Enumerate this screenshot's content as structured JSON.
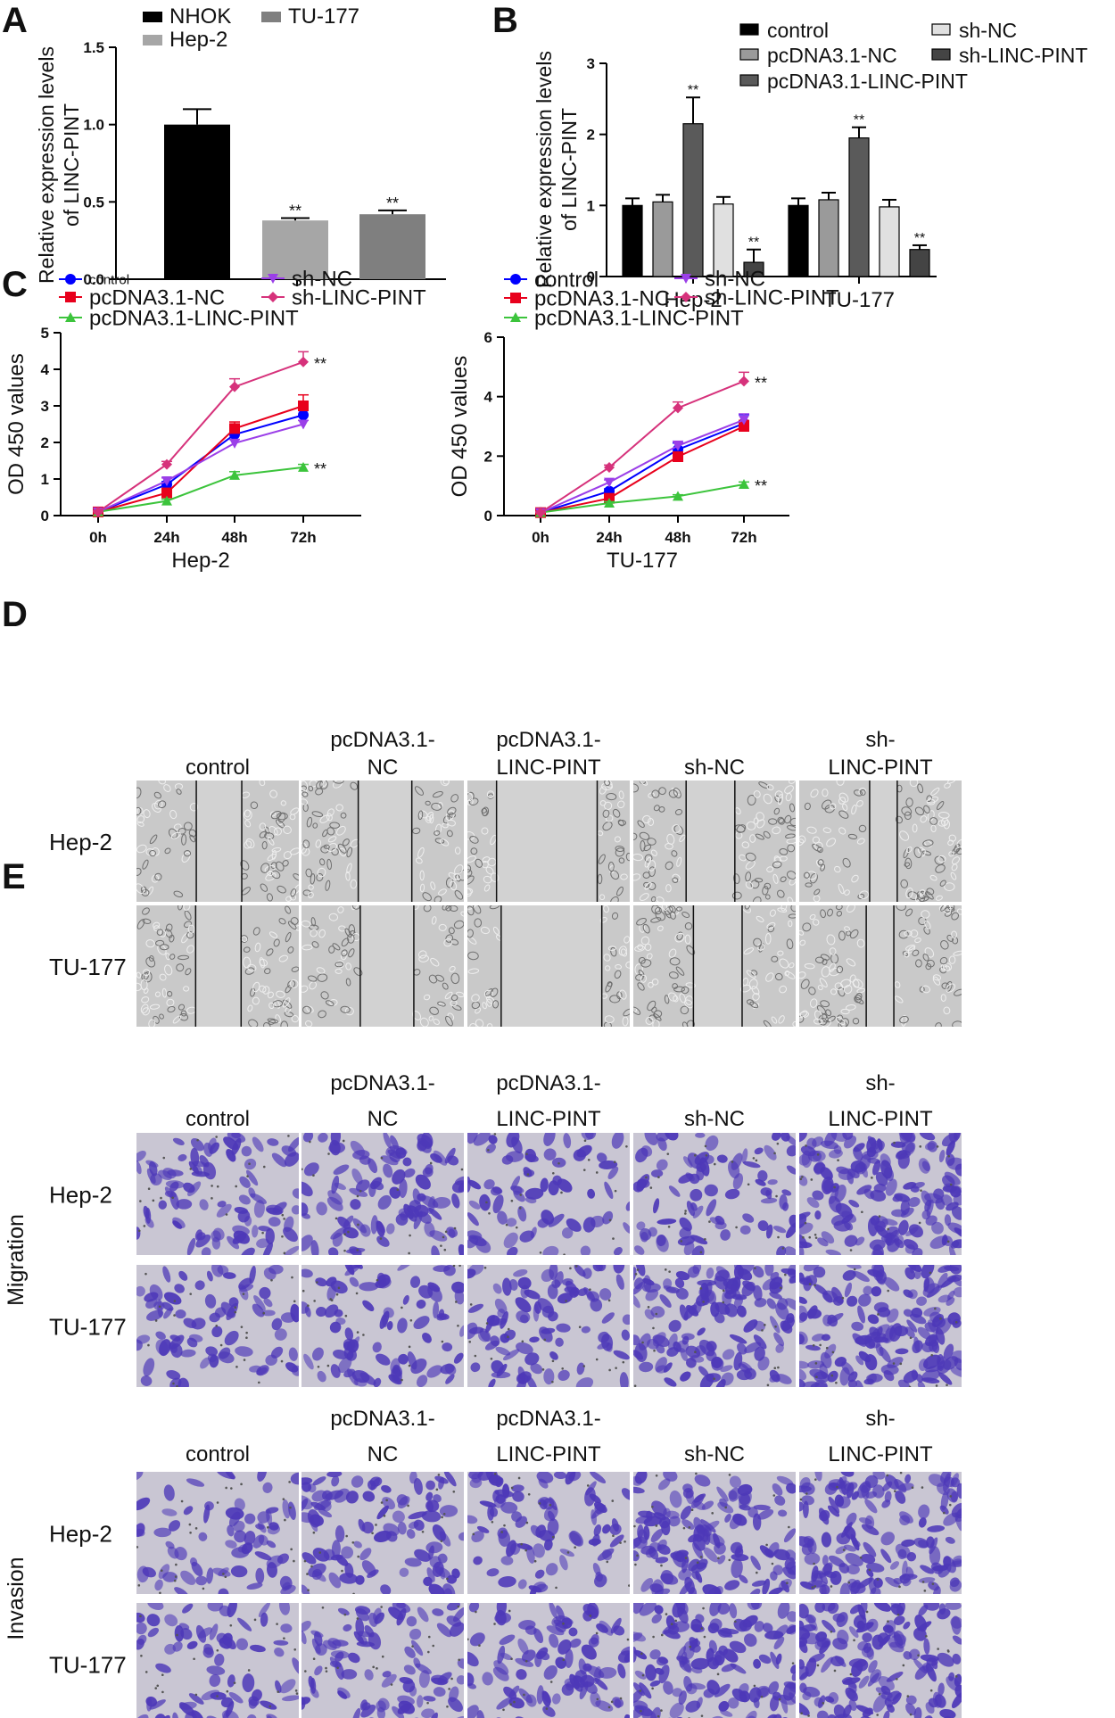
{
  "panel_letters": [
    "A",
    "B",
    "C",
    "D",
    "E"
  ],
  "colors": {
    "nhok": "#000000",
    "hep2": "#a6a6a6",
    "tu177": "#7f7f7f",
    "control": "#0000ff",
    "pcNC": "#e8001c",
    "pcPINT": "#3cc43c",
    "shNC": "#9b3fe8",
    "shPINT": "#d6327b",
    "cell_bg": "#c9c9c9",
    "stain": "#4d38b8",
    "stain_bg": "#c9c6d3"
  },
  "sig_mark": "**",
  "chart_data": [
    {
      "id": "A",
      "type": "bar",
      "categories": [
        "NHOK",
        "Hep-2",
        "TU-177"
      ],
      "values": [
        1.0,
        0.38,
        0.42
      ],
      "errors": [
        0.1,
        0.015,
        0.025
      ],
      "significance": [
        "",
        "**",
        "**"
      ],
      "legend": [
        "NHOK",
        "Hep-2",
        "TU-177"
      ],
      "ylabel": "Relative expression levels of LINC-PINT",
      "yticks": [
        "0.0",
        "0.5",
        "1.0",
        "1.5"
      ],
      "ylim": [
        0,
        1.5
      ]
    },
    {
      "id": "B",
      "type": "bar",
      "categories": [
        "Hep-2",
        "TU-177"
      ],
      "series": [
        {
          "name": "control",
          "values": [
            1.0,
            1.0
          ],
          "errors": [
            0.1,
            0.1
          ],
          "significance": [
            "",
            ""
          ]
        },
        {
          "name": "pcDNA3.1-NC",
          "values": [
            1.05,
            1.08
          ],
          "errors": [
            0.1,
            0.1
          ],
          "significance": [
            "",
            ""
          ]
        },
        {
          "name": "pcDNA3.1-LINC-PINT",
          "values": [
            2.15,
            1.95
          ],
          "errors": [
            0.37,
            0.15
          ],
          "significance": [
            "**",
            "**"
          ]
        },
        {
          "name": "sh-NC",
          "values": [
            1.02,
            0.98
          ],
          "errors": [
            0.1,
            0.1
          ],
          "significance": [
            "",
            ""
          ]
        },
        {
          "name": "sh-LINC-PINT",
          "values": [
            0.2,
            0.38
          ],
          "errors": [
            0.18,
            0.06
          ],
          "significance": [
            "**",
            "**"
          ]
        }
      ],
      "ylabel": "Relative expression levels of LINC-PINT",
      "yticks": [
        "0",
        "1",
        "2",
        "3"
      ],
      "ylim": [
        0,
        3
      ]
    },
    {
      "id": "C1",
      "type": "line",
      "x": [
        "0h",
        "24h",
        "48h",
        "72h"
      ],
      "xlabel": "Hep-2",
      "ylabel": "OD 450 values",
      "yticks": [
        "0",
        "1",
        "2",
        "3",
        "4",
        "5"
      ],
      "ylim": [
        0,
        5
      ],
      "series": [
        {
          "name": "control",
          "values": [
            0.1,
            0.85,
            2.22,
            2.75
          ],
          "errors": [
            0.03,
            0.08,
            0.12,
            0.12
          ]
        },
        {
          "name": "pcDNA3.1-NC",
          "values": [
            0.1,
            0.62,
            2.38,
            3.0
          ],
          "errors": [
            0.03,
            0.06,
            0.18,
            0.3
          ]
        },
        {
          "name": "pcDNA3.1-LINC-PINT",
          "values": [
            0.1,
            0.4,
            1.1,
            1.32
          ],
          "errors": [
            0.03,
            0.05,
            0.1,
            0.08
          ]
        },
        {
          "name": "sh-NC",
          "values": [
            0.1,
            0.95,
            1.98,
            2.5
          ],
          "errors": [
            0.03,
            0.08,
            0.1,
            0.1
          ]
        },
        {
          "name": "sh-LINC-PINT",
          "values": [
            0.1,
            1.4,
            3.52,
            4.2
          ],
          "errors": [
            0.03,
            0.08,
            0.22,
            0.28
          ]
        }
      ],
      "significance": [
        {
          "series": "sh-LINC-PINT",
          "label": "**"
        },
        {
          "series": "pcDNA3.1-LINC-PINT",
          "label": "**"
        }
      ]
    },
    {
      "id": "C2",
      "type": "line",
      "x": [
        "0h",
        "24h",
        "48h",
        "72h"
      ],
      "xlabel": "TU-177",
      "ylabel": "OD 450 values",
      "yticks": [
        "0",
        "2",
        "4",
        "6"
      ],
      "ylim": [
        0,
        6
      ],
      "series": [
        {
          "name": "control",
          "values": [
            0.1,
            0.82,
            2.22,
            3.1
          ],
          "errors": [
            0.03,
            0.08,
            0.22,
            0.3
          ]
        },
        {
          "name": "pcDNA3.1-NC",
          "values": [
            0.1,
            0.58,
            1.98,
            3.0
          ],
          "errors": [
            0.03,
            0.06,
            0.15,
            0.2
          ]
        },
        {
          "name": "pcDNA3.1-LINC-PINT",
          "values": [
            0.1,
            0.42,
            0.65,
            1.05
          ],
          "errors": [
            0.03,
            0.05,
            0.05,
            0.08
          ]
        },
        {
          "name": "sh-NC",
          "values": [
            0.1,
            1.12,
            2.35,
            3.22
          ],
          "errors": [
            0.03,
            0.08,
            0.15,
            0.2
          ]
        },
        {
          "name": "sh-LINC-PINT",
          "values": [
            0.1,
            1.62,
            3.62,
            4.52
          ],
          "errors": [
            0.03,
            0.08,
            0.2,
            0.3
          ]
        }
      ],
      "significance": [
        {
          "series": "sh-LINC-PINT",
          "label": "**"
        },
        {
          "series": "pcDNA3.1-LINC-PINT",
          "label": "**"
        }
      ]
    }
  ],
  "micro_columns": [
    [
      "control"
    ],
    [
      "pcDNA3.1-",
      "NC"
    ],
    [
      "pcDNA3.1-",
      "LINC-PINT"
    ],
    [
      "sh-NC"
    ],
    [
      "sh-",
      "LINC-PINT"
    ]
  ],
  "micro_rows": [
    "Hep-2",
    "TU-177"
  ],
  "group_labels": [
    "Migration",
    "Invasion"
  ],
  "scratch_gap_widths": [
    0.28,
    0.33,
    0.62,
    0.3,
    0.17
  ],
  "transwell_density": {
    "migration": [
      [
        0.45,
        0.5,
        0.3,
        0.4,
        0.95
      ],
      [
        0.35,
        0.4,
        0.45,
        0.8,
        0.95
      ]
    ],
    "invasion": [
      [
        0.3,
        0.5,
        0.4,
        0.75,
        0.85
      ],
      [
        0.35,
        0.45,
        0.45,
        0.75,
        0.85
      ]
    ]
  }
}
